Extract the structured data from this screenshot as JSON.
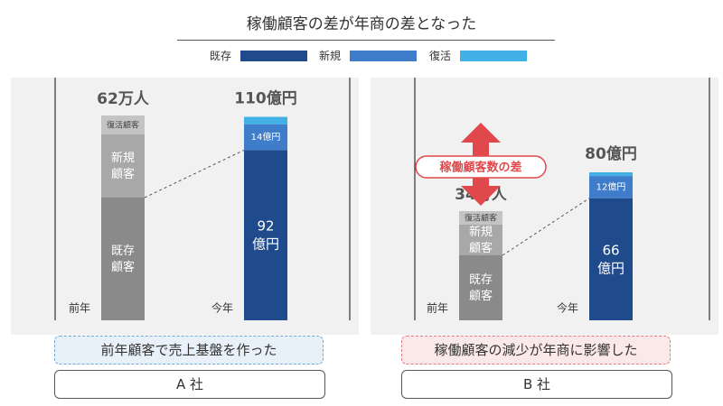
{
  "title": "稼働顧客の差が年商の差となった",
  "legend": [
    {
      "label": "既存",
      "color": "#1f4a8c"
    },
    {
      "label": "新規",
      "color": "#3f7cc9"
    },
    {
      "label": "復活",
      "color": "#41b0e5"
    }
  ],
  "colors": {
    "prev_existing": "#8a8a8a",
    "prev_new": "#a8a8a8",
    "prev_revival": "#c4c4c4",
    "arrow": "#e0484b",
    "caption_a_border": "#6fa8d9",
    "caption_a_bg": "#e8f1fa",
    "caption_b_border": "#e07b7d",
    "caption_b_bg": "#fbe8e8"
  },
  "chart_data": [
    {
      "type": "bar",
      "company": "A 社",
      "categories": [
        "前年",
        "今年"
      ],
      "prev_year": {
        "total": "62万人",
        "segments": [
          "既存\n顧客",
          "新規\n顧客",
          "復活顧客"
        ]
      },
      "this_year": {
        "total": "110億円",
        "series": [
          {
            "name": "既存",
            "value": 92,
            "label": "92\n億円"
          },
          {
            "name": "新規",
            "value": 14,
            "label": "14億円"
          },
          {
            "name": "復活",
            "value": 4
          }
        ]
      },
      "caption": "前年顧客で売上基盤を作った"
    },
    {
      "type": "bar",
      "company": "B 社",
      "categories": [
        "前年",
        "今年"
      ],
      "prev_year": {
        "total": "34万人",
        "segments": [
          "既存\n顧客",
          "新規\n顧客",
          "復活顧客"
        ]
      },
      "this_year": {
        "total": "80億円",
        "series": [
          {
            "name": "既存",
            "value": 66,
            "label": "66\n億円"
          },
          {
            "name": "新規",
            "value": 12,
            "label": "12億円"
          },
          {
            "name": "復活",
            "value": 2
          }
        ]
      },
      "difference_label": "稼働顧客数の差",
      "caption": "稼働顧客の減少が年商に影響した"
    }
  ]
}
